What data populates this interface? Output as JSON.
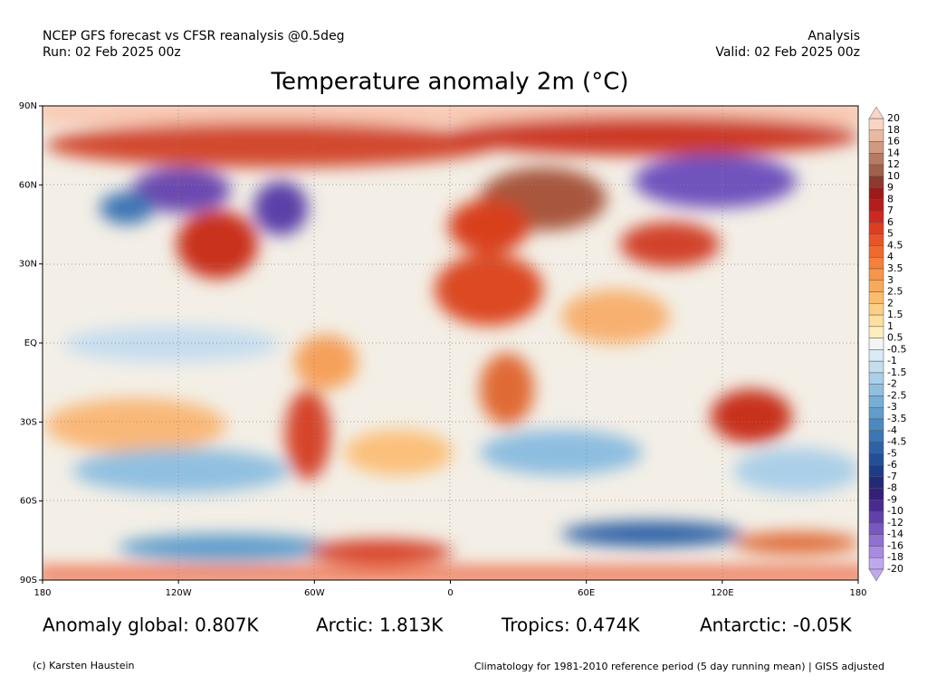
{
  "header": {
    "left_line1": "NCEP GFS forecast vs CFSR reanalysis @0.5deg",
    "left_line2": "Run: 02 Feb 2025 00z",
    "right_line1": "Analysis",
    "right_line2": "Valid: 02 Feb 2025 00z"
  },
  "title": "Temperature anomaly 2m (°C)",
  "map": {
    "lat_labels": [
      "90N",
      "60N",
      "30N",
      "EQ",
      "30S",
      "60S",
      "90S"
    ],
    "lon_labels": [
      "180",
      "120W",
      "60W",
      "0",
      "60E",
      "120E",
      "180"
    ]
  },
  "colorbar": {
    "labels": [
      20,
      18,
      16,
      14,
      12,
      10,
      9,
      8,
      7,
      6,
      5,
      4.5,
      4,
      3.5,
      3,
      2.5,
      2,
      1.5,
      1,
      0.5,
      -0.5,
      -1,
      -1.5,
      -2,
      -2.5,
      -3,
      -3.5,
      -4,
      -4.5,
      -5,
      -6,
      -7,
      -8,
      -9,
      -10,
      -12,
      -14,
      -16,
      -18,
      -20
    ],
    "colors": [
      "#f9d5c5",
      "#e8b8a0",
      "#d09a80",
      "#b87a62",
      "#a0604a",
      "#8c3a2e",
      "#9e1a1a",
      "#b51c1c",
      "#cc2a20",
      "#dd3e22",
      "#e85428",
      "#f06a30",
      "#f5803a",
      "#f79548",
      "#f9aa58",
      "#fbbd6c",
      "#fcd084",
      "#fde09e",
      "#fdeebc",
      "#f4f4f4",
      "#dbeaf5",
      "#c4ddef",
      "#aacfe8",
      "#90c0e0",
      "#76afd6",
      "#5f9dcc",
      "#4b8ac0",
      "#3c76b4",
      "#2e62a6",
      "#234f98",
      "#1d3c88",
      "#232a78",
      "#33207a",
      "#4a2a92",
      "#6040aa",
      "#7858c0",
      "#9070d0",
      "#a88ae0",
      "#c0a8ee"
    ]
  },
  "stats": [
    "Anomaly global: 0.807K",
    "Arctic: 1.813K",
    "Tropics: 0.474K",
    "Antarctic: -0.05K"
  ],
  "footer": {
    "credit": "(c) Karsten Haustein",
    "note": "Climatology for 1981-2010 reference period (5 day running mean) | GISS adjusted"
  }
}
